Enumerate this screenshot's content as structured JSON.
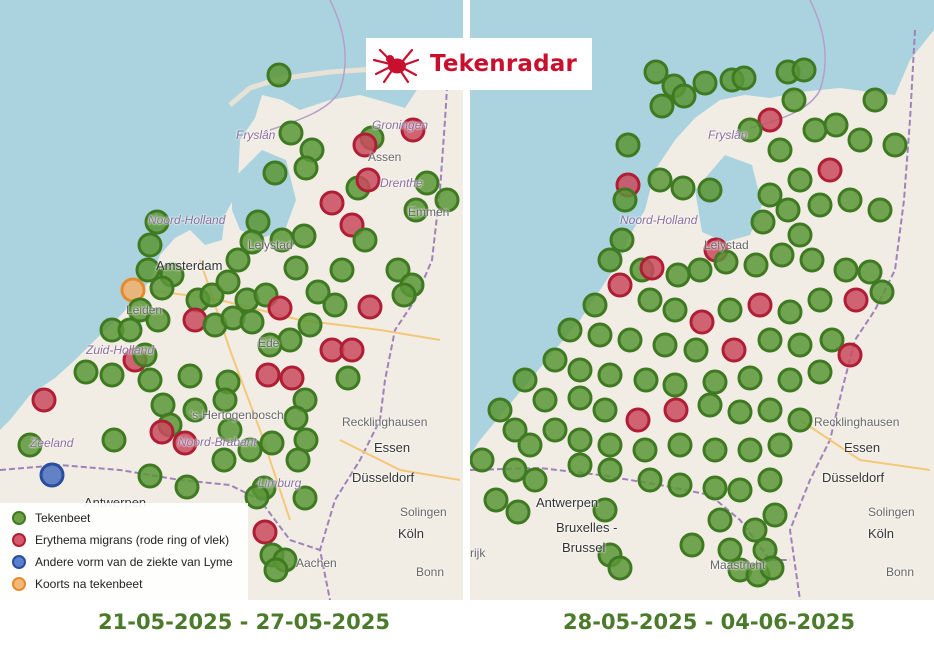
{
  "brand": {
    "name": "Tekenradar",
    "brand_color": "#c8102e"
  },
  "legend": {
    "items": [
      {
        "label": "Tekenbeet",
        "color": "#4e8a2e"
      },
      {
        "label": "Erythema migrans (rode ring of vlek)",
        "color": "#c8283f"
      },
      {
        "label": "Andere vorm van de ziekte van Lyme",
        "color": "#3a5fb0"
      },
      {
        "label": "Koorts na tekenbeet",
        "color": "#f0a050"
      }
    ]
  },
  "periods": {
    "left": "21-05-2025 - 27-05-2025",
    "right": "28-05-2025 - 04-06-2025"
  },
  "map_labels": {
    "left": {
      "fryslan": "Fryslân",
      "groningen": "Groningen",
      "assen": "Assen",
      "drenthe": "Drenthe",
      "emmen": "Emmen",
      "noord_holland": "Noord-Holland",
      "lelystad": "Lelystad",
      "amsterdam": "Amsterdam",
      "leiden": "Leiden",
      "zuid_holland": "Zuid-Holland",
      "ede": "Ede",
      "den_bosch": "'s-Hertogenbosch",
      "brabant": "Noord-Brabant",
      "zeeland": "Zeeland",
      "recklinghausen": "Recklinghausen",
      "essen": "Essen",
      "dusseldorf": "Düsseldorf",
      "antwerpen": "Antwerpen",
      "solingen": "Solingen",
      "koln": "Köln",
      "bonn": "Bonn",
      "aachen": "Aachen",
      "limburg": "Limburg"
    },
    "right": {
      "fryslan": "Fryslân",
      "noord_holland": "Noord-Holland",
      "lelystad": "Lelystad",
      "recklinghausen": "Recklinghausen",
      "essen": "Essen",
      "dusseldorf": "Düsseldorf",
      "antwerpen": "Antwerpen",
      "bruxelles": "Bruxelles -",
      "brussel": "Brussel",
      "solingen": "Solingen",
      "koln": "Köln",
      "bonn": "Bonn",
      "maastricht": "Maastricht",
      "rijk": "rijk"
    }
  },
  "map_colors": {
    "sea": "#aad3df",
    "land": "#f1ede4",
    "border": "#9e82b8",
    "marker_green": "#4e8a2e",
    "marker_red": "#c8283f",
    "marker_blue": "#3a5fb0",
    "marker_orange": "#f0a050"
  }
}
